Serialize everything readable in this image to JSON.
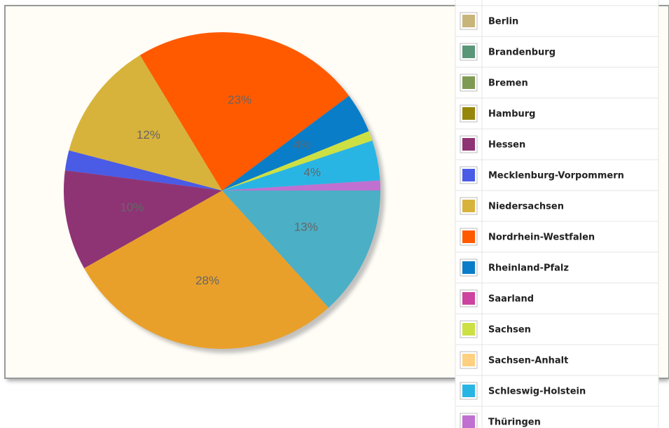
{
  "chart_data": {
    "type": "pie",
    "series": [
      {
        "name": null,
        "color": "#4bafc6",
        "value": 13,
        "value_label": "13%"
      },
      {
        "name": null,
        "color": "#e9a02a",
        "value": 28,
        "value_label": "28%"
      },
      {
        "name": "Berlin",
        "color": "#c8b57a",
        "value": 0,
        "value_label": null
      },
      {
        "name": "Brandenburg",
        "color": "#5a9678",
        "value": 0,
        "value_label": null
      },
      {
        "name": "Bremen",
        "color": "#7f9a52",
        "value": 0,
        "value_label": null
      },
      {
        "name": "Hamburg",
        "color": "#96870a",
        "value": 0,
        "value_label": null
      },
      {
        "name": "Hessen",
        "color": "#8e3475",
        "value": 10,
        "value_label": "10%"
      },
      {
        "name": "Mecklenburg-Vorpommern",
        "color": "#4a5be6",
        "value": 2,
        "value_label": null
      },
      {
        "name": "Niedersachsen",
        "color": "#d8b33c",
        "value": 12,
        "value_label": "12%"
      },
      {
        "name": "Nordrhein-Westfalen",
        "color": "#ff5a00",
        "value": 23,
        "value_label": "23%"
      },
      {
        "name": "Rheinland-Pfalz",
        "color": "#0a7dc8",
        "value": 4,
        "value_label": "4%"
      },
      {
        "name": "Saarland",
        "color": "#cc44a0",
        "value": 0,
        "value_label": null
      },
      {
        "name": "Sachsen",
        "color": "#cce044",
        "value": 1,
        "value_label": null
      },
      {
        "name": "Sachsen-Anhalt",
        "color": "#ffd080",
        "value": 0,
        "value_label": null
      },
      {
        "name": "Schleswig-Holstein",
        "color": "#29b5e4",
        "value": 4,
        "value_label": "4%"
      },
      {
        "name": "Thüringen",
        "color": "#c070d0",
        "value": 1,
        "value_label": null
      }
    ]
  }
}
